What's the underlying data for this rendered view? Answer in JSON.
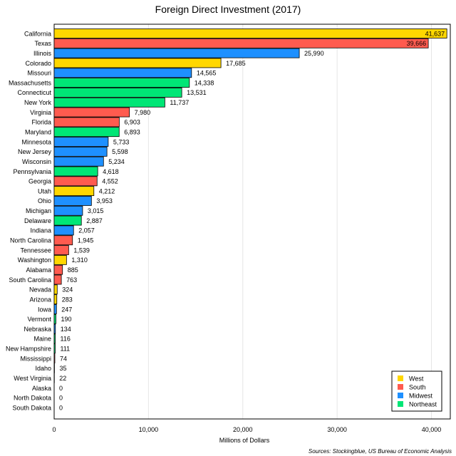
{
  "chart_data": {
    "type": "bar",
    "orientation": "horizontal",
    "title": "Foreign Direct Investment (2017)",
    "xlabel": "Millions of Dollars",
    "ylabel": "",
    "xlim": [
      0,
      42000
    ],
    "xticks": [
      0,
      10000,
      20000,
      30000,
      40000
    ],
    "xtick_labels": [
      "0",
      "10,000",
      "20,000",
      "30,000",
      "40,000"
    ],
    "grid": "vertical",
    "legend_position": "bottom-right",
    "legend": [
      {
        "name": "West",
        "color": "#ffd700"
      },
      {
        "name": "South",
        "color": "#ff5b4f"
      },
      {
        "name": "Midwest",
        "color": "#1e90ff"
      },
      {
        "name": "Northeast",
        "color": "#00e676"
      }
    ],
    "bars": [
      {
        "state": "California",
        "region": "West",
        "value": 41637,
        "label": "41,637"
      },
      {
        "state": "Texas",
        "region": "South",
        "value": 39666,
        "label": "39,666"
      },
      {
        "state": "Illinois",
        "region": "Midwest",
        "value": 25990,
        "label": "25,990"
      },
      {
        "state": "Colorado",
        "region": "West",
        "value": 17685,
        "label": "17,685"
      },
      {
        "state": "Missouri",
        "region": "Midwest",
        "value": 14565,
        "label": "14,565"
      },
      {
        "state": "Massachusetts",
        "region": "Northeast",
        "value": 14338,
        "label": "14,338"
      },
      {
        "state": "Connecticut",
        "region": "Northeast",
        "value": 13531,
        "label": "13,531"
      },
      {
        "state": "New York",
        "region": "Northeast",
        "value": 11737,
        "label": "11,737"
      },
      {
        "state": "Virginia",
        "region": "South",
        "value": 7980,
        "label": "7,980"
      },
      {
        "state": "Florida",
        "region": "South",
        "value": 6903,
        "label": "6,903"
      },
      {
        "state": "Maryland",
        "region": "Northeast",
        "value": 6893,
        "label": "6,893"
      },
      {
        "state": "Minnesota",
        "region": "Midwest",
        "value": 5733,
        "label": "5,733"
      },
      {
        "state": "New Jersey",
        "region": "Midwest",
        "value": 5598,
        "label": "5,598"
      },
      {
        "state": "Wisconsin",
        "region": "Midwest",
        "value": 5234,
        "label": "5,234"
      },
      {
        "state": "Pennsylvania",
        "region": "Northeast",
        "value": 4618,
        "label": "4,618"
      },
      {
        "state": "Georgia",
        "region": "South",
        "value": 4552,
        "label": "4,552"
      },
      {
        "state": "Utah",
        "region": "West",
        "value": 4212,
        "label": "4,212"
      },
      {
        "state": "Ohio",
        "region": "Midwest",
        "value": 3953,
        "label": "3,953"
      },
      {
        "state": "Michigan",
        "region": "Midwest",
        "value": 3015,
        "label": "3,015"
      },
      {
        "state": "Delaware",
        "region": "Northeast",
        "value": 2887,
        "label": "2,887"
      },
      {
        "state": "Indiana",
        "region": "Midwest",
        "value": 2057,
        "label": "2,057"
      },
      {
        "state": "North Carolina",
        "region": "South",
        "value": 1945,
        "label": "1,945"
      },
      {
        "state": "Tennessee",
        "region": "South",
        "value": 1539,
        "label": "1,539"
      },
      {
        "state": "Washington",
        "region": "West",
        "value": 1310,
        "label": "1,310"
      },
      {
        "state": "Alabama",
        "region": "South",
        "value": 885,
        "label": "885"
      },
      {
        "state": "South Carolina",
        "region": "South",
        "value": 763,
        "label": "763"
      },
      {
        "state": "Nevada",
        "region": "West",
        "value": 324,
        "label": "324"
      },
      {
        "state": "Arizona",
        "region": "West",
        "value": 283,
        "label": "283"
      },
      {
        "state": "Iowa",
        "region": "Midwest",
        "value": 247,
        "label": "247"
      },
      {
        "state": "Vermont",
        "region": "Northeast",
        "value": 190,
        "label": "190"
      },
      {
        "state": "Nebraska",
        "region": "Midwest",
        "value": 134,
        "label": "134"
      },
      {
        "state": "Maine",
        "region": "Northeast",
        "value": 116,
        "label": "116"
      },
      {
        "state": "New Hampshire",
        "region": "Northeast",
        "value": 111,
        "label": "111"
      },
      {
        "state": "Mississippi",
        "region": "South",
        "value": 74,
        "label": "74"
      },
      {
        "state": "Idaho",
        "region": "West",
        "value": 35,
        "label": "35"
      },
      {
        "state": "West Virginia",
        "region": "South",
        "value": 22,
        "label": "22"
      },
      {
        "state": "Alaska",
        "region": "West",
        "value": 0,
        "label": "0"
      },
      {
        "state": "North Dakota",
        "region": "Midwest",
        "value": 0,
        "label": "0"
      },
      {
        "state": "South Dakota",
        "region": "Midwest",
        "value": 0,
        "label": "0"
      }
    ],
    "source": "Sources: Stockingblue, US Bureau of Economic Analysis"
  }
}
